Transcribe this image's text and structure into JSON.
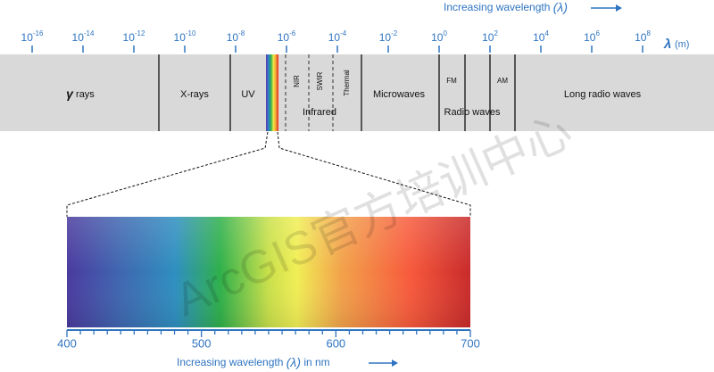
{
  "top_axis": {
    "caption": "Increasing wavelength",
    "caption_symbol": "(λ)",
    "unit_symbol": "λ",
    "unit": "(m)",
    "ticks": [
      {
        "base": "10",
        "exp": "-16"
      },
      {
        "base": "10",
        "exp": "-14"
      },
      {
        "base": "10",
        "exp": "-12"
      },
      {
        "base": "10",
        "exp": "-10"
      },
      {
        "base": "10",
        "exp": "-8"
      },
      {
        "base": "10",
        "exp": "-6"
      },
      {
        "base": "10",
        "exp": "-4"
      },
      {
        "base": "10",
        "exp": "-2"
      },
      {
        "base": "10",
        "exp": "0"
      },
      {
        "base": "10",
        "exp": "2"
      },
      {
        "base": "10",
        "exp": "4"
      },
      {
        "base": "10",
        "exp": "6"
      },
      {
        "base": "10",
        "exp": "8"
      }
    ]
  },
  "bands": {
    "gamma_symbol": "γ",
    "gamma": "rays",
    "xrays": "X-rays",
    "uv": "UV",
    "nir": "NIR",
    "swir": "SWIR",
    "thermal": "Thermal",
    "infrared": "Infrared",
    "microwaves": "Microwaves",
    "fm": "FM",
    "am": "AM",
    "radio": "Radio waves",
    "long_radio": "Long radio waves"
  },
  "bottom_axis": {
    "ticks": [
      "400",
      "500",
      "600",
      "700"
    ],
    "caption": "Increasing wavelength",
    "caption_symbol": "(λ)",
    "caption_unit": "in nm"
  },
  "watermark": "ArcGIS官方培训中心"
}
